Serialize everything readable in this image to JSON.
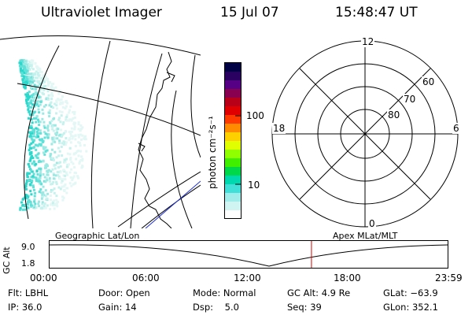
{
  "header": {
    "instrument": "Ultraviolet Imager",
    "date": "15 Jul 07",
    "time": "15:48:47 UT"
  },
  "colorbar": {
    "unit_label": "photon cm⁻²s⁻¹",
    "ticks": [
      "100",
      "10"
    ],
    "colors": [
      "#000044",
      "#2a0060",
      "#560086",
      "#8a0050",
      "#b80018",
      "#e00000",
      "#ff3a00",
      "#ff8c00",
      "#ffd000",
      "#e0ff00",
      "#90ff00",
      "#40ee00",
      "#00d84a",
      "#00d8b0",
      "#40e0d8",
      "#a0ecea",
      "#d0f4f2",
      "#ffffff"
    ]
  },
  "polar": {
    "mlt_labels": {
      "top": "12",
      "bottom": "0",
      "left": "18",
      "right": "6"
    },
    "lat_labels": [
      "60",
      "70",
      "80"
    ]
  },
  "timeline": {
    "left_caption": "Geographic Lat/Lon",
    "right_caption": "Apex MLat/MLT",
    "axis_title": "GC Alt",
    "y_max": "9.0",
    "y_min": "1.8",
    "times": [
      "00:00",
      "06:00",
      "12:00",
      "18:00",
      "23:59"
    ],
    "current_time_fraction": 0.658,
    "marker_color": "#dd0000"
  },
  "info": {
    "flt": "Flt: LBHL",
    "ip": "IP: 36.0",
    "door": "Door: Open",
    "gain": "Gain: 14",
    "mode": "Mode: Normal",
    "dsp": "Dsp:    5.0",
    "gc_alt": "GC Alt: 4.9 Re",
    "seq": "Seq: 39",
    "glat": "GLat: −63.9",
    "glon": "GLon: 352.1"
  }
}
